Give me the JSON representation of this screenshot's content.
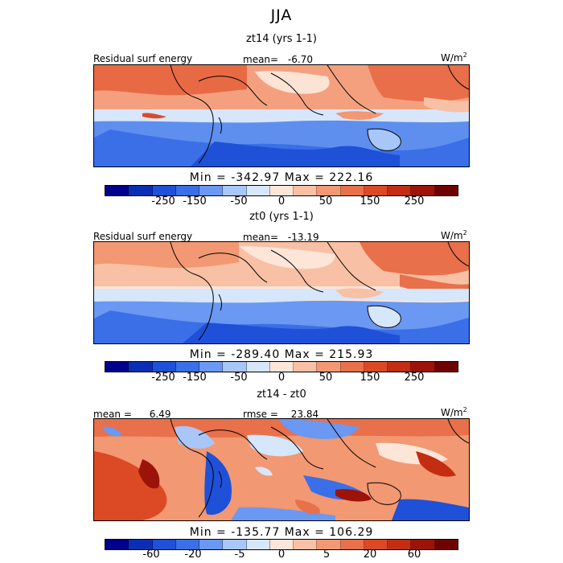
{
  "title": "JJA",
  "units_base": "W/m",
  "units_exp": "2",
  "panels": [
    {
      "subtitle": "zt14 (yrs 1-1)",
      "left_label": "Residual surf energy",
      "stat_label": "mean=",
      "stat_value": "-6.70",
      "minmax": "Min = -342.97 Max = 222.16",
      "ticks": [
        "-250",
        "-150",
        "-50",
        "0",
        "50",
        "150",
        "250"
      ]
    },
    {
      "subtitle": "zt0 (yrs 1-1)",
      "left_label": "Residual surf energy",
      "stat_label": "mean=",
      "stat_value": "-13.19",
      "minmax": "Min = -289.40 Max = 215.93",
      "ticks": [
        "-250",
        "-150",
        "-50",
        "0",
        "50",
        "150",
        "250"
      ]
    },
    {
      "subtitle": "zt14 - zt0",
      "left_label": "mean =",
      "left_value": "6.49",
      "stat_label": "rmse =",
      "stat_value": "23.84",
      "minmax": "Min = -135.77 Max = 106.29",
      "ticks": [
        "-60",
        "-20",
        "-5",
        "0",
        "5",
        "20",
        "60"
      ]
    }
  ],
  "colorbar_colors": [
    "#00008b",
    "#0a2fb4",
    "#1f50d8",
    "#3b6fe8",
    "#6a98f2",
    "#a8c6f7",
    "#d6e6fb",
    "#fde5d8",
    "#f8c0a5",
    "#f29872",
    "#e8704a",
    "#db4a24",
    "#c32d12",
    "#9c1309",
    "#6e0303"
  ],
  "chart_data": [
    {
      "type": "heatmap",
      "title": "zt14 (yrs 1-1)",
      "variable": "Residual surf energy",
      "season": "JJA",
      "units": "W/m2",
      "mean": -6.7,
      "min": -342.97,
      "max": 222.16,
      "colorbar_ticks": [
        -250,
        -150,
        -50,
        0,
        50,
        150,
        250
      ]
    },
    {
      "type": "heatmap",
      "title": "zt0 (yrs 1-1)",
      "variable": "Residual surf energy",
      "season": "JJA",
      "units": "W/m2",
      "mean": -13.19,
      "min": -289.4,
      "max": 215.93,
      "colorbar_ticks": [
        -250,
        -150,
        -50,
        0,
        50,
        150,
        250
      ]
    },
    {
      "type": "heatmap",
      "title": "zt14 - zt0",
      "season": "JJA",
      "units": "W/m2",
      "mean": 6.49,
      "rmse": 23.84,
      "min": -135.77,
      "max": 106.29,
      "colorbar_ticks": [
        -60,
        -20,
        -5,
        0,
        5,
        20,
        60
      ]
    }
  ]
}
